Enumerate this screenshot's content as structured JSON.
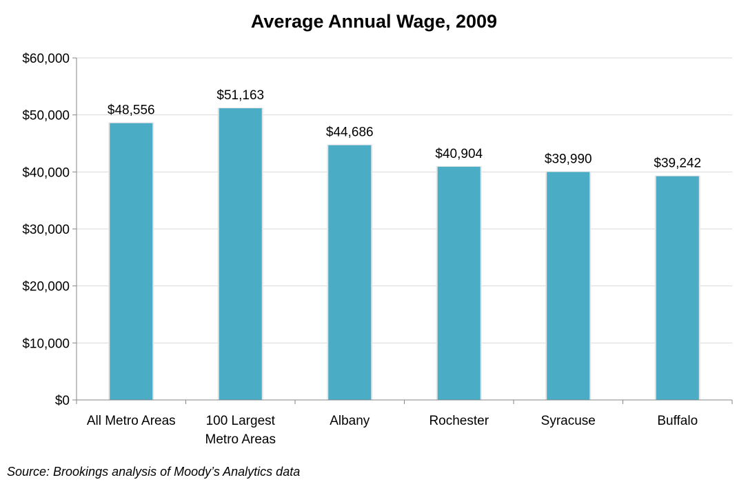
{
  "chart_data": {
    "type": "bar",
    "title": "Average Annual Wage, 2009",
    "categories": [
      [
        "All Metro Areas"
      ],
      [
        "100 Largest",
        "Metro Areas"
      ],
      [
        "Albany"
      ],
      [
        "Rochester"
      ],
      [
        "Syracuse"
      ],
      [
        "Buffalo"
      ]
    ],
    "values": [
      48556,
      51163,
      44686,
      40904,
      39990,
      39242
    ],
    "data_labels": [
      "$48,556",
      "$51,163",
      "$44,686",
      "$40,904",
      "$39,990",
      "$39,242"
    ],
    "y_ticks": [
      0,
      10000,
      20000,
      30000,
      40000,
      50000,
      60000
    ],
    "y_tick_labels": [
      "$0",
      "$10,000",
      "$20,000",
      "$30,000",
      "$40,000",
      "$50,000",
      "$60,000"
    ],
    "ylim": [
      0,
      60000
    ],
    "grid": true,
    "legend": "none",
    "bar_color": "#4BACC6",
    "grid_color": "#D9D9D9",
    "axis_color": "#868686"
  },
  "source": "Source: Brookings analysis of Moody’s Analytics data"
}
